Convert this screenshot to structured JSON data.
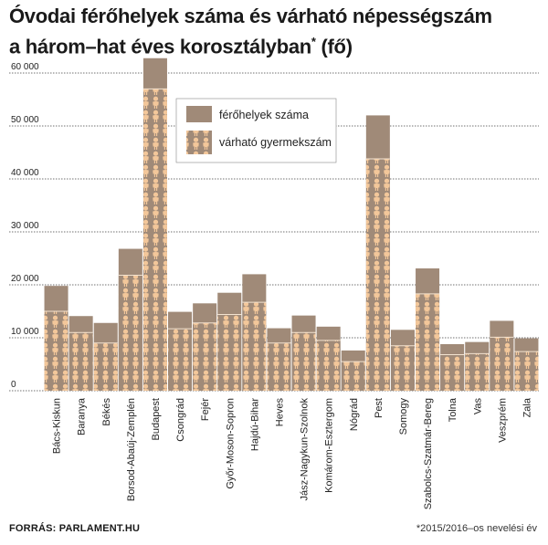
{
  "title_line1": "Óvodai férőhelyek száma és várható népességszám",
  "title_line2": "a három–hat éves korosztályban",
  "title_mark": "*",
  "title_unit": " (fő)",
  "source": "FORRÁS: PARLAMENT.HU",
  "footnote": "*2015/2016–os nevelési év",
  "colors": {
    "capacity": "#a08a78",
    "children": "#a08a78",
    "figure": "#f3c79a",
    "grid": "#444444"
  },
  "chart_data": {
    "type": "bar",
    "ylim": [
      0,
      60000
    ],
    "yticks": [
      "0",
      "10 000",
      "20 000",
      "30 000",
      "40 000",
      "50 000",
      "60 000"
    ],
    "ytick_values": [
      0,
      10000,
      20000,
      30000,
      40000,
      50000,
      60000
    ],
    "legend_position": "top-center",
    "categories": [
      "Bács-Kiskun",
      "Baranya",
      "Békés",
      "Borsod-Abaúj-Zemplén",
      "Budapest",
      "Csongrád",
      "Fejér",
      "Győr-Moson-Sopron",
      "Hajdú-Bihar",
      "Heves",
      "Jász-Nagykun-Szolnok",
      "Komárom-Esztergom",
      "Nógrád",
      "Pest",
      "Somogy",
      "Szabolcs-Szatmár-Bereg",
      "Tolna",
      "Vas",
      "Veszprém",
      "Zala"
    ],
    "series": [
      {
        "name": "férőhelyek száma",
        "values": [
          19800,
          14100,
          12800,
          26800,
          62800,
          14900,
          16500,
          18500,
          22000,
          11800,
          14200,
          12100,
          7600,
          52000,
          11500,
          23100,
          8800,
          9200,
          13200,
          9900
        ]
      },
      {
        "name": "várható gyermekszám",
        "values": [
          15000,
          11000,
          9000,
          21800,
          57000,
          11700,
          12800,
          14400,
          16700,
          9000,
          11000,
          9500,
          5500,
          43800,
          8500,
          18300,
          6800,
          7000,
          10100,
          7400
        ]
      }
    ]
  }
}
